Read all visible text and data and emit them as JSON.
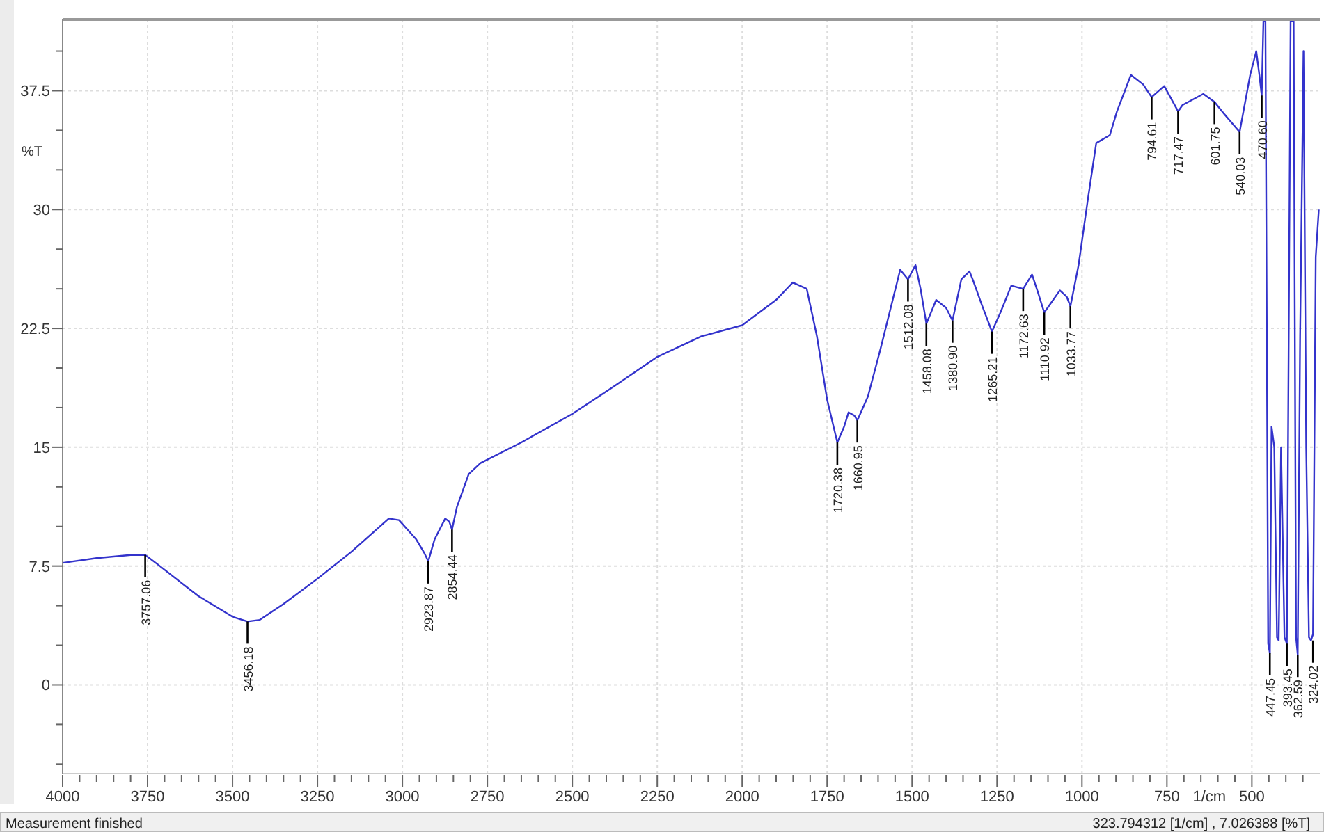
{
  "chart_data": {
    "type": "line",
    "xlabel": "1/cm",
    "ylabel": "%T",
    "xlim": [
      4000,
      300
    ],
    "ylim": [
      -5.6,
      42
    ],
    "xticks": [
      4000,
      {
        "value": 3950,
        "label": null
      },
      {
        "value": 3900,
        "label": null
      },
      {
        "value": 3850,
        "label": null
      },
      {
        "value": 3800,
        "label": null
      },
      3750,
      {
        "value": 3700,
        "label": null
      },
      {
        "value": 3650,
        "label": null
      },
      {
        "value": 3600,
        "label": null
      },
      {
        "value": 3550,
        "label": null
      },
      3500,
      {
        "value": 3450,
        "label": null
      },
      {
        "value": 3400,
        "label": null
      },
      {
        "value": 3350,
        "label": null
      },
      {
        "value": 3300,
        "label": null
      },
      3250,
      {
        "value": 3200,
        "label": null
      },
      {
        "value": 3150,
        "label": null
      },
      {
        "value": 3100,
        "label": null
      },
      {
        "value": 3050,
        "label": null
      },
      3000,
      {
        "value": 2950,
        "label": null
      },
      {
        "value": 2900,
        "label": null
      },
      {
        "value": 2850,
        "label": null
      },
      {
        "value": 2800,
        "label": null
      },
      2750,
      {
        "value": 2700,
        "label": null
      },
      {
        "value": 2650,
        "label": null
      },
      {
        "value": 2600,
        "label": null
      },
      {
        "value": 2550,
        "label": null
      },
      2500,
      {
        "value": 2450,
        "label": null
      },
      {
        "value": 2400,
        "label": null
      },
      {
        "value": 2350,
        "label": null
      },
      {
        "value": 2300,
        "label": null
      },
      2250,
      {
        "value": 2200,
        "label": null
      },
      {
        "value": 2150,
        "label": null
      },
      {
        "value": 2100,
        "label": null
      },
      {
        "value": 2050,
        "label": null
      },
      2000,
      {
        "value": 1950,
        "label": null
      },
      {
        "value": 1900,
        "label": null
      },
      {
        "value": 1850,
        "label": null
      },
      {
        "value": 1800,
        "label": null
      },
      1750,
      {
        "value": 1700,
        "label": null
      },
      {
        "value": 1650,
        "label": null
      },
      {
        "value": 1600,
        "label": null
      },
      {
        "value": 1550,
        "label": null
      },
      1500,
      {
        "value": 1450,
        "label": null
      },
      {
        "value": 1400,
        "label": null
      },
      {
        "value": 1350,
        "label": null
      },
      {
        "value": 1300,
        "label": null
      },
      1250,
      {
        "value": 1200,
        "label": null
      },
      {
        "value": 1150,
        "label": null
      },
      {
        "value": 1100,
        "label": null
      },
      {
        "value": 1050,
        "label": null
      },
      1000,
      {
        "value": 950,
        "label": null
      },
      {
        "value": 900,
        "label": null
      },
      {
        "value": 850,
        "label": null
      },
      {
        "value": 800,
        "label": null
      },
      750,
      {
        "value": 700,
        "label": null
      },
      {
        "value": 650,
        "label": null
      },
      {
        "value": 600,
        "label": null
      },
      {
        "value": 550,
        "label": null
      },
      500,
      {
        "value": 450,
        "label": null
      },
      {
        "value": 400,
        "label": null
      },
      {
        "value": 350,
        "label": null
      }
    ],
    "yticks": [
      {
        "value": -5,
        "label": null
      },
      {
        "value": -2.5,
        "label": null
      },
      0,
      {
        "value": 2.5,
        "label": null
      },
      {
        "value": 5,
        "label": null
      },
      7.5,
      {
        "value": 10,
        "label": null
      },
      {
        "value": 12.5,
        "label": null
      },
      15,
      {
        "value": 17.5,
        "label": null
      },
      {
        "value": 20,
        "label": null
      },
      22.5,
      {
        "value": 25,
        "label": null
      },
      {
        "value": 27.5,
        "label": null
      },
      30,
      {
        "value": 32.5,
        "label": null
      },
      {
        "value": 35,
        "label": null
      },
      37.5,
      {
        "value": 40,
        "label": null
      }
    ],
    "grid": true,
    "marker": "none",
    "line_style": "solid",
    "series": [
      {
        "color": "#3333cc",
        "x": [
          4000,
          3900,
          3800,
          3757,
          3720,
          3600,
          3500,
          3456,
          3420,
          3350,
          3250,
          3150,
          3040,
          3010,
          2960,
          2935,
          2924,
          2905,
          2874,
          2862,
          2854,
          2840,
          2805,
          2770,
          2650,
          2500,
          2380,
          2250,
          2120,
          2000,
          1900,
          1851,
          1810,
          1780,
          1750,
          1720,
          1700,
          1687,
          1670,
          1661,
          1630,
          1593,
          1535,
          1512,
          1490,
          1475,
          1458,
          1429,
          1400,
          1381,
          1355,
          1331,
          1320,
          1295,
          1265,
          1240,
          1208,
          1173,
          1147,
          1130,
          1111,
          1065,
          1045,
          1034,
          1010,
          983,
          958,
          918,
          897,
          856,
          820,
          795,
          758,
          717,
          704,
          643,
          610,
          580,
          536,
          505,
          487,
          478,
          471,
          466,
          460,
          452,
          447,
          442,
          434,
          426,
          421,
          414,
          404,
          397,
          386,
          377,
          370,
          365,
          358,
          348,
          340,
          332,
          326,
          320,
          312,
          303
        ],
        "values": [
          7.7,
          8.0,
          8.2,
          8.2,
          7.6,
          5.6,
          4.3,
          4.0,
          4.1,
          5.1,
          6.7,
          8.4,
          10.5,
          10.4,
          9.2,
          8.3,
          7.8,
          9.2,
          10.5,
          10.3,
          9.8,
          11.2,
          13.3,
          14.0,
          15.3,
          17.1,
          18.8,
          20.7,
          22.0,
          22.7,
          24.3,
          25.4,
          25.0,
          22.0,
          18.0,
          15.3,
          16.3,
          17.2,
          17.0,
          16.7,
          18.2,
          21.2,
          26.2,
          25.6,
          26.5,
          25.0,
          22.8,
          24.3,
          23.8,
          23.0,
          25.6,
          26.1,
          25.5,
          24.0,
          22.3,
          23.5,
          25.2,
          25.0,
          25.9,
          24.8,
          23.5,
          24.9,
          24.5,
          23.9,
          26.5,
          30.6,
          34.2,
          34.7,
          36.2,
          38.5,
          37.9,
          37.1,
          37.8,
          36.2,
          36.6,
          37.3,
          36.8,
          36.0,
          34.9,
          38.5,
          40.0,
          38.5,
          37.2,
          41.9,
          41.9,
          2.6,
          2.0,
          16.3,
          15.0,
          3.0,
          2.8,
          15.0,
          3.0,
          2.6,
          41.9,
          41.9,
          3.0,
          1.9,
          22.0,
          40.0,
          15.0,
          3.0,
          2.8,
          3.2,
          27.0,
          30.0
        ]
      }
    ],
    "annotations": [
      {
        "text": "3757.06",
        "x": 3757,
        "y": 8.2
      },
      {
        "text": "3456.18",
        "x": 3456,
        "y": 4.0
      },
      {
        "text": "2923.87",
        "x": 2924,
        "y": 7.8
      },
      {
        "text": "2854.44",
        "x": 2854,
        "y": 9.8
      },
      {
        "text": "1720.38",
        "x": 1720,
        "y": 15.3
      },
      {
        "text": "1660.95",
        "x": 1661,
        "y": 16.7
      },
      {
        "text": "1512.08",
        "x": 1512,
        "y": 25.6
      },
      {
        "text": "1458.08",
        "x": 1458,
        "y": 22.8
      },
      {
        "text": "1380.90",
        "x": 1381,
        "y": 23.0
      },
      {
        "text": "1265.21",
        "x": 1265,
        "y": 22.3
      },
      {
        "text": "1172.63",
        "x": 1173,
        "y": 25.0
      },
      {
        "text": "1110.92",
        "x": 1111,
        "y": 23.5
      },
      {
        "text": "1033.77",
        "x": 1034,
        "y": 23.9
      },
      {
        "text": "794.61",
        "x": 795,
        "y": 37.1
      },
      {
        "text": "717.47",
        "x": 717,
        "y": 36.2
      },
      {
        "text": "601.75",
        "x": 610,
        "y": 36.8
      },
      {
        "text": "540.03",
        "x": 536,
        "y": 34.9
      },
      {
        "text": "470.60",
        "x": 471,
        "y": 37.2
      },
      {
        "text": "447.45",
        "x": 447,
        "y": 2.0
      },
      {
        "text": "393.45",
        "x": 397,
        "y": 2.6
      },
      {
        "text": "362.59",
        "x": 365,
        "y": 1.9
      },
      {
        "text": "324.02",
        "x": 320,
        "y": 2.8
      },
      "Measurement finished",
      "323.794312 [1/cm] , 7.026388 [%T]"
    ]
  }
}
